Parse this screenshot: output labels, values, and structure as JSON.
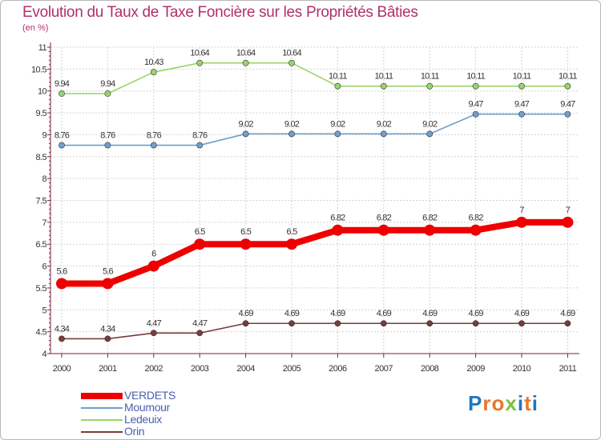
{
  "title": "Evolution du Taux de Taxe Foncière sur les Propriétés Bâties",
  "subtitle": "(en %)",
  "logo": {
    "text": "Proxiti"
  },
  "colors": {
    "title": "#b0306a",
    "axis": "#7a1f3f",
    "grid": "#d3d3d3",
    "legend_text": "#4a5fb0",
    "logo_letters": [
      "#1f77c2",
      "#e8762b",
      "#e8762b",
      "#7ac142",
      "#1f77c2",
      "#e8762b",
      "#1f77c2"
    ]
  },
  "chart_data": {
    "type": "line",
    "title": "Evolution du Taux de Taxe Foncière sur les Propriétés Bâties",
    "ylabel": "(en %)",
    "xlabel": "",
    "categories": [
      "2000",
      "2001",
      "2002",
      "2003",
      "2004",
      "2005",
      "2006",
      "2007",
      "2008",
      "2009",
      "2010",
      "2011"
    ],
    "ylim": [
      4,
      11
    ],
    "yticks": [
      "4",
      "4.5",
      "5",
      "5.5",
      "6",
      "6.5",
      "7",
      "7.5",
      "8",
      "8.5",
      "9",
      "9.5",
      "10",
      "10.5",
      "11"
    ],
    "grid": true,
    "legend_position": "bottom-left",
    "series": [
      {
        "name": "VERDETS",
        "color": "#ee0000",
        "labels": [
          "5.6",
          "5.6",
          "6",
          "6.5",
          "6.5",
          "6.5",
          "6.82",
          "6.82",
          "6.82",
          "6.82",
          "7",
          "7"
        ],
        "values": [
          5.6,
          5.6,
          6,
          6.5,
          6.5,
          6.5,
          6.82,
          6.82,
          6.82,
          6.82,
          7,
          7
        ]
      },
      {
        "name": "Moumour",
        "color": "#6fa0cd",
        "labels": [
          "8.76",
          "8.76",
          "8.76",
          "8.76",
          "9.02",
          "9.02",
          "9.02",
          "9.02",
          "9.02",
          "9.47",
          "9.47",
          "9.47"
        ],
        "values": [
          8.76,
          8.76,
          8.76,
          8.76,
          9.02,
          9.02,
          9.02,
          9.02,
          9.02,
          9.47,
          9.47,
          9.47
        ]
      },
      {
        "name": "Ledeuix",
        "color": "#99d46a",
        "labels": [
          "9.94",
          "9.94",
          "10.43",
          "10.64",
          "10.64",
          "10.64",
          "10.11",
          "10.11",
          "10.11",
          "10.11",
          "10.11",
          "10.11"
        ],
        "values": [
          9.94,
          9.94,
          10.43,
          10.64,
          10.64,
          10.64,
          10.11,
          10.11,
          10.11,
          10.11,
          10.11,
          10.11
        ]
      },
      {
        "name": "Orin",
        "color": "#7a3b3b",
        "labels": [
          "4.34",
          "4.34",
          "4.47",
          "4.47",
          "4.69",
          "4.69",
          "4.69",
          "4.69",
          "4.69",
          "4.69",
          "4.69",
          "4.69"
        ],
        "values": [
          4.34,
          4.34,
          4.47,
          4.47,
          4.69,
          4.69,
          4.69,
          4.69,
          4.69,
          4.69,
          4.69,
          4.69
        ]
      }
    ]
  }
}
